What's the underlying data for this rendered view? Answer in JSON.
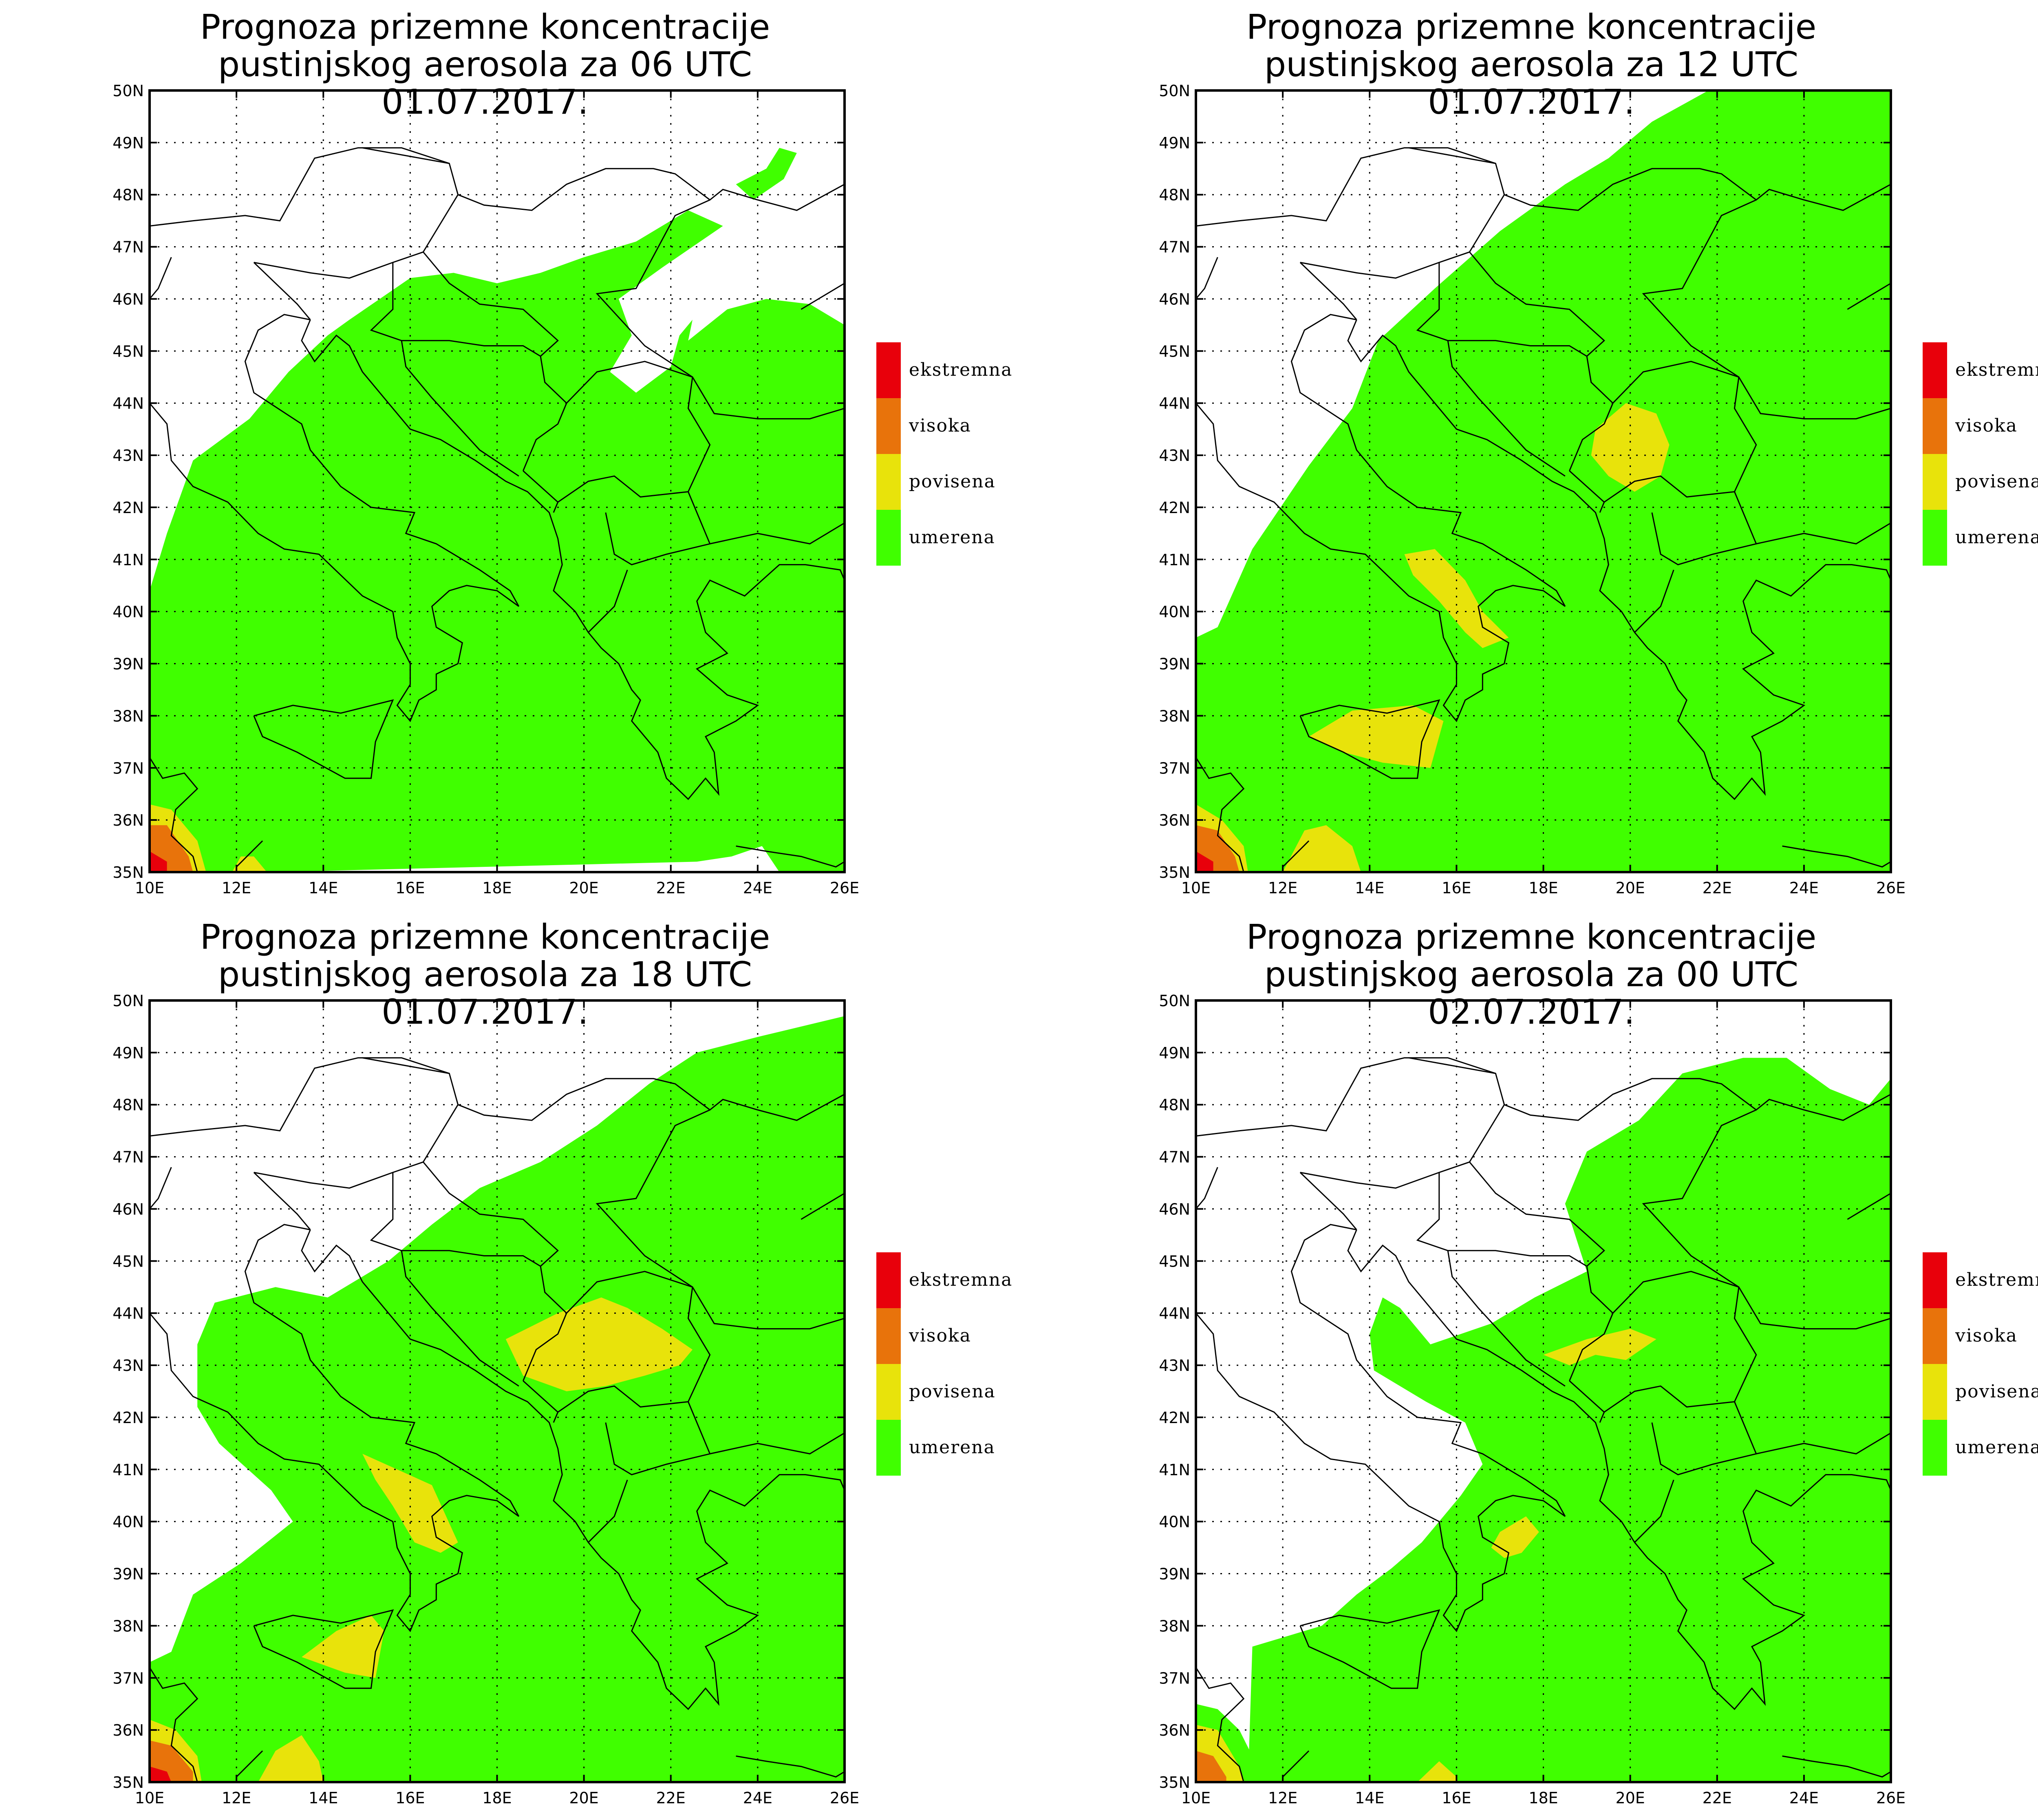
{
  "panels": [
    {
      "title1": "Prognoza prizemne koncentracije",
      "title2": "pustinjskog aerosola za 06 UTC 01.07.2017."
    },
    {
      "title1": "Prognoza prizemne koncentracije",
      "title2": "pustinjskog aerosola za 12 UTC 01.07.2017."
    },
    {
      "title1": "Prognoza prizemne koncentracije",
      "title2": "pustinjskog aerosola za 18 UTC 01.07.2017."
    },
    {
      "title1": "Prognoza prizemne koncentracije",
      "title2": "pustinjskog aerosola za 00 UTC 02.07.2017."
    }
  ],
  "legend": [
    {
      "label": "ekstremna",
      "color": "#e8000b"
    },
    {
      "label": "visoka",
      "color": "#e8730b"
    },
    {
      "label": "povisena",
      "color": "#e8e30b"
    },
    {
      "label": "umerena",
      "color": "#40ff00"
    }
  ],
  "lat_labels": [
    "50N",
    "49N",
    "48N",
    "47N",
    "46N",
    "45N",
    "44N",
    "43N",
    "42N",
    "41N",
    "40N",
    "39N",
    "38N",
    "37N",
    "36N",
    "35N"
  ],
  "lon_labels": [
    "10E",
    "12E",
    "14E",
    "16E",
    "18E",
    "20E",
    "22E",
    "24E",
    "26E"
  ],
  "colors": {
    "umerena": "#40ff00",
    "povisena": "#e8e30b",
    "visoka": "#e8730b",
    "ekstremna": "#e8000b",
    "frame": "#000000",
    "borders": "#000000"
  }
}
